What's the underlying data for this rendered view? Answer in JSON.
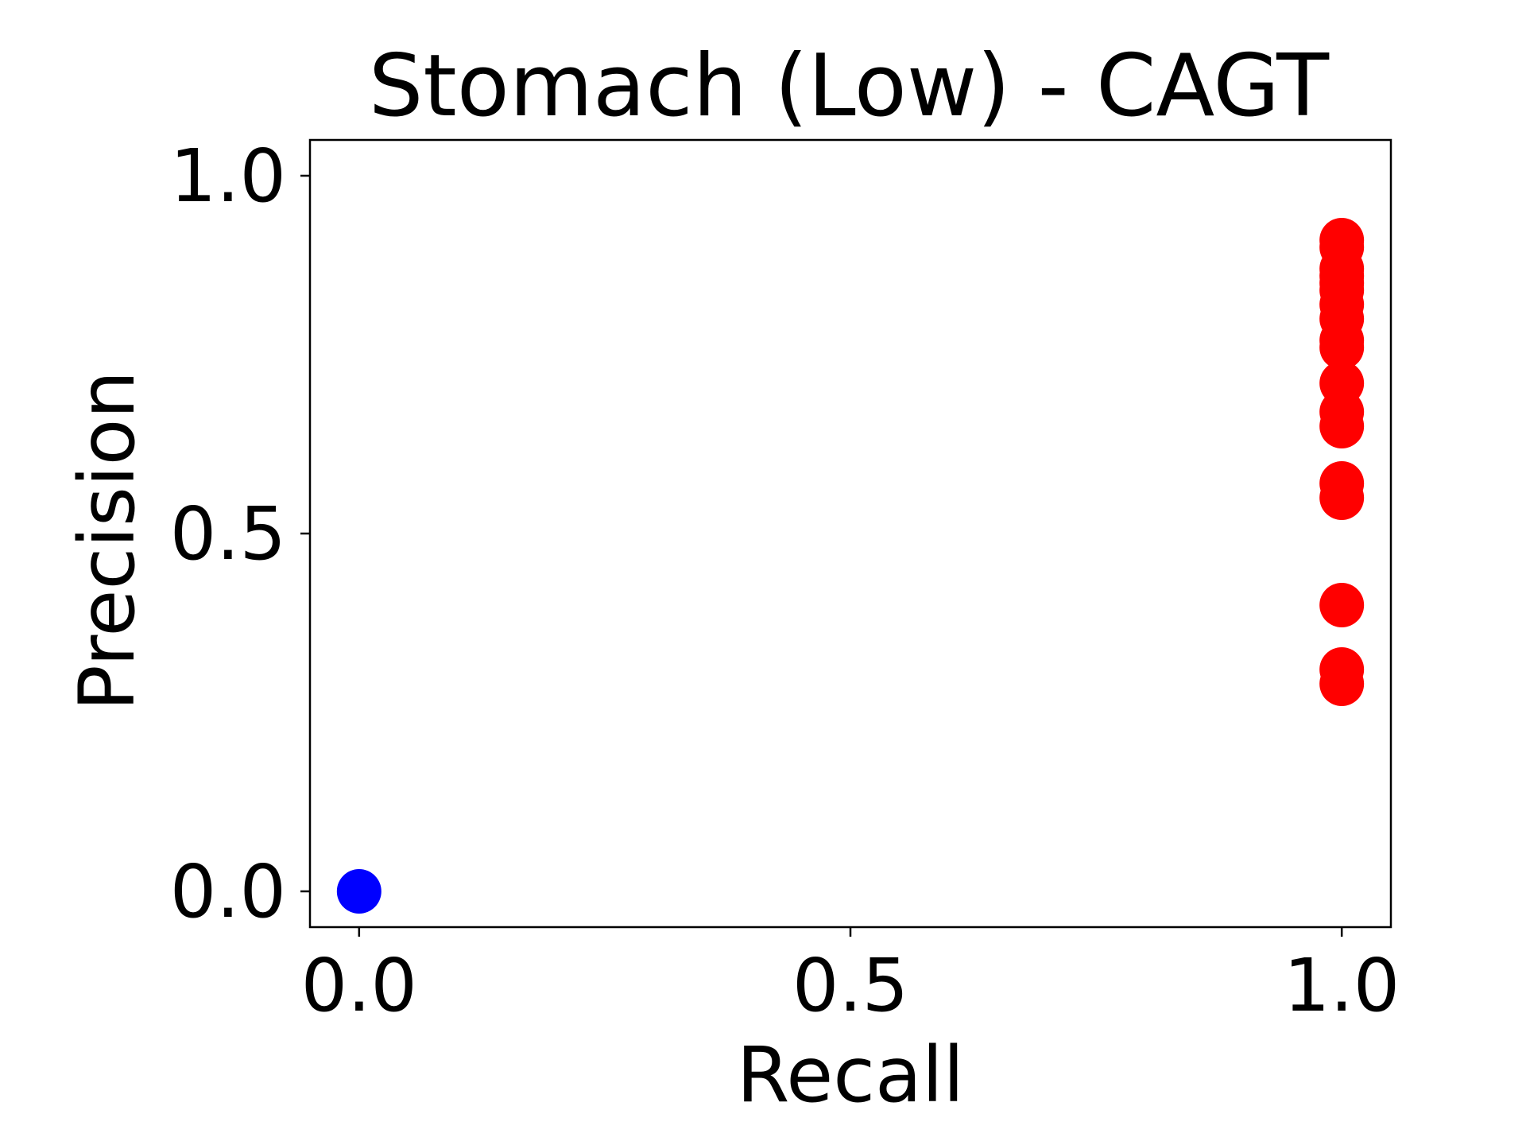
{
  "chart_data": {
    "type": "scatter",
    "title": "Stomach (Low) - CAGT",
    "xlabel": "Recall",
    "ylabel": "Precision",
    "xlim": [
      -0.05,
      1.05
    ],
    "ylim": [
      -0.05,
      1.05
    ],
    "xticks": [
      {
        "value": 0.0,
        "label": "0.0"
      },
      {
        "value": 0.5,
        "label": "0.5"
      },
      {
        "value": 1.0,
        "label": "1.0"
      }
    ],
    "yticks": [
      {
        "value": 0.0,
        "label": "0.0"
      },
      {
        "value": 0.5,
        "label": "0.5"
      },
      {
        "value": 1.0,
        "label": "1.0"
      }
    ],
    "grid": false,
    "series": [
      {
        "color": "#ff0000",
        "points": [
          {
            "x": 1.0,
            "y": 0.91
          },
          {
            "x": 1.0,
            "y": 0.9
          },
          {
            "x": 1.0,
            "y": 0.87
          },
          {
            "x": 1.0,
            "y": 0.86
          },
          {
            "x": 1.0,
            "y": 0.85
          },
          {
            "x": 1.0,
            "y": 0.84
          },
          {
            "x": 1.0,
            "y": 0.82
          },
          {
            "x": 1.0,
            "y": 0.8
          },
          {
            "x": 1.0,
            "y": 0.77
          },
          {
            "x": 1.0,
            "y": 0.76
          },
          {
            "x": 1.0,
            "y": 0.71
          },
          {
            "x": 1.0,
            "y": 0.67
          },
          {
            "x": 1.0,
            "y": 0.65
          },
          {
            "x": 1.0,
            "y": 0.57
          },
          {
            "x": 1.0,
            "y": 0.55
          },
          {
            "x": 1.0,
            "y": 0.4
          },
          {
            "x": 1.0,
            "y": 0.31
          },
          {
            "x": 1.0,
            "y": 0.29
          }
        ]
      },
      {
        "color": "#0000ff",
        "points": [
          {
            "x": 0.0,
            "y": 0.0
          }
        ]
      }
    ]
  }
}
